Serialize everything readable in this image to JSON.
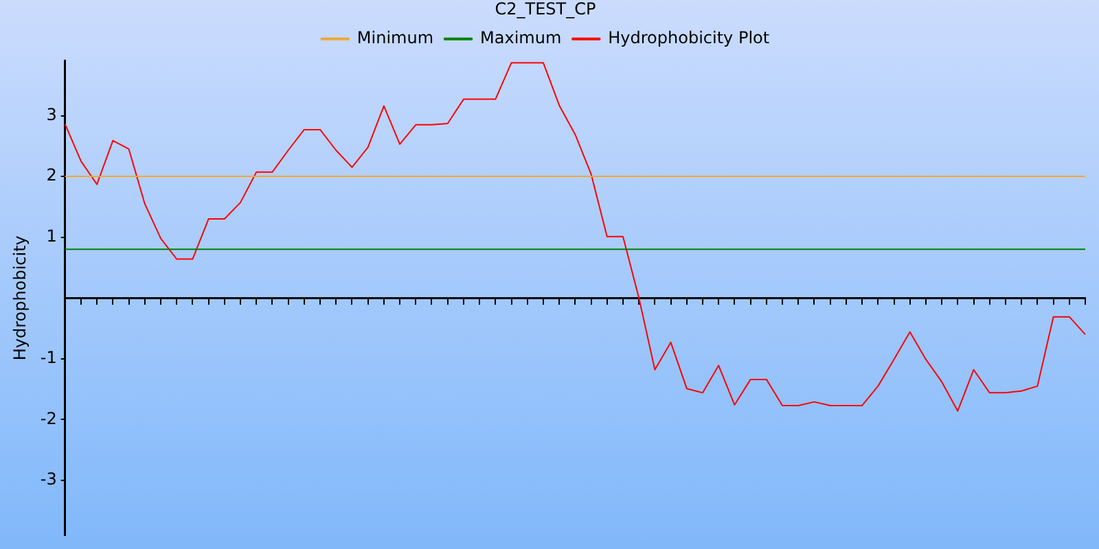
{
  "chart_data": {
    "type": "line",
    "title": "C2_TEST_CP",
    "ylabel": "Hydrophobicity",
    "categories": [
      null,
      null,
      null,
      null,
      null,
      null,
      null,
      null,
      null,
      null,
      null,
      null,
      null,
      null,
      null,
      null,
      null,
      null,
      null,
      null,
      null,
      null,
      null,
      null,
      null,
      null,
      null,
      null,
      null,
      null,
      null,
      null,
      null,
      null,
      null,
      null,
      null,
      null,
      null,
      null,
      null,
      null,
      null,
      null,
      null,
      null,
      null,
      null,
      null,
      null,
      null,
      null,
      null,
      null,
      null,
      null,
      null,
      null,
      null,
      null,
      null,
      null,
      null,
      null,
      null
    ],
    "series": [
      {
        "name": "Minimum",
        "color": "#f0a830",
        "values": [
          2,
          2,
          2,
          2,
          2,
          2,
          2,
          2,
          2,
          2,
          2,
          2,
          2,
          2,
          2,
          2,
          2,
          2,
          2,
          2,
          2,
          2,
          2,
          2,
          2,
          2,
          2,
          2,
          2,
          2,
          2,
          2,
          2,
          2,
          2,
          2,
          2,
          2,
          2,
          2,
          2,
          2,
          2,
          2,
          2,
          2,
          2,
          2,
          2,
          2,
          2,
          2,
          2,
          2,
          2,
          2,
          2,
          2,
          2,
          2,
          2,
          2,
          2,
          2,
          2
        ]
      },
      {
        "name": "Maximum",
        "color": "#008000",
        "values": [
          0.8,
          0.8,
          0.8,
          0.8,
          0.8,
          0.8,
          0.8,
          0.8,
          0.8,
          0.8,
          0.8,
          0.8,
          0.8,
          0.8,
          0.8,
          0.8,
          0.8,
          0.8,
          0.8,
          0.8,
          0.8,
          0.8,
          0.8,
          0.8,
          0.8,
          0.8,
          0.8,
          0.8,
          0.8,
          0.8,
          0.8,
          0.8,
          0.8,
          0.8,
          0.8,
          0.8,
          0.8,
          0.8,
          0.8,
          0.8,
          0.8,
          0.8,
          0.8,
          0.8,
          0.8,
          0.8,
          0.8,
          0.8,
          0.8,
          0.8,
          0.8,
          0.8,
          0.8,
          0.8,
          0.8,
          0.8,
          0.8,
          0.8,
          0.8,
          0.8,
          0.8,
          0.8,
          0.8,
          0.8,
          0.8
        ]
      },
      {
        "name": "Hydrophobicity Plot",
        "color": "#ff0000",
        "values": [
          2.86,
          2.25,
          1.87,
          2.59,
          2.45,
          1.55,
          0.98,
          0.64,
          0.64,
          1.3,
          1.3,
          1.57,
          2.07,
          2.07,
          2.43,
          2.77,
          2.77,
          2.43,
          2.15,
          2.48,
          3.16,
          2.53,
          2.85,
          2.85,
          2.87,
          3.27,
          3.27,
          3.27,
          3.87,
          3.87,
          3.87,
          3.17,
          2.69,
          2.04,
          1.01,
          1.01,
          0.0,
          -1.18,
          -0.73,
          -1.49,
          -1.56,
          -1.11,
          -1.76,
          -1.34,
          -1.34,
          -1.77,
          -1.77,
          -1.71,
          -1.77,
          -1.77,
          -1.77,
          -1.45,
          -1.01,
          -0.56,
          -1.01,
          -1.38,
          -1.86,
          -1.18,
          -1.56,
          -1.56,
          -1.53,
          -1.45,
          -0.31,
          -0.31,
          -0.6
        ]
      }
    ],
    "ylim": [
      -3.9,
      3.9
    ],
    "yticks": [
      -3,
      -2,
      -1,
      1,
      2,
      3
    ],
    "tick_labels": "y",
    "grid": false,
    "legend": "top",
    "marker": "none",
    "line_style": "solid"
  }
}
